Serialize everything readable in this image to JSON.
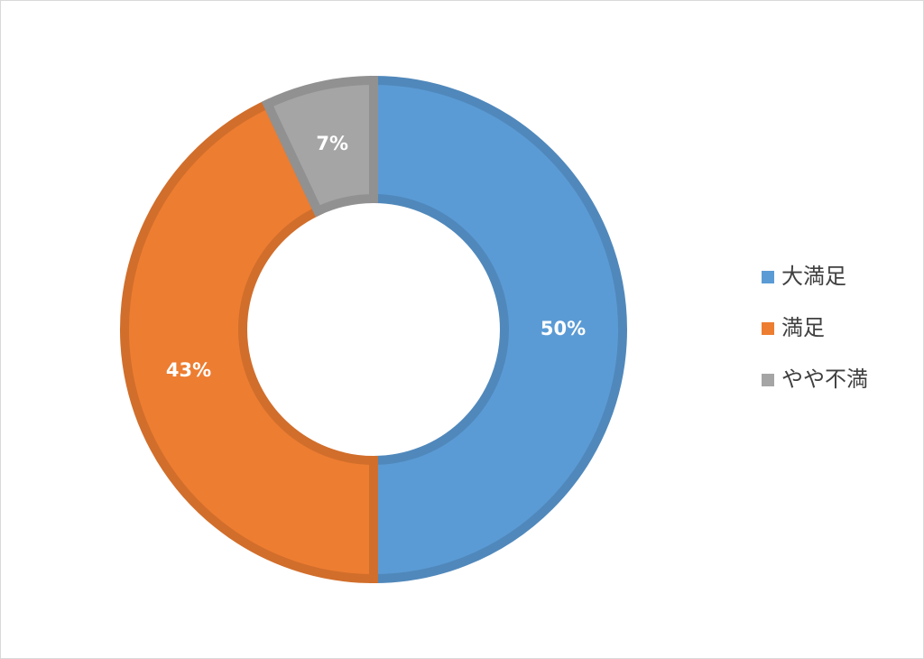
{
  "chart_data": {
    "type": "doughnut",
    "categories": [
      "大満足",
      "満足",
      "やや不満"
    ],
    "values": [
      50,
      43,
      7
    ],
    "value_labels": [
      "50%",
      "43%",
      "7%"
    ],
    "colors": [
      "#5b9bd5",
      "#ed7d31",
      "#a5a5a5"
    ],
    "legend": "right"
  }
}
